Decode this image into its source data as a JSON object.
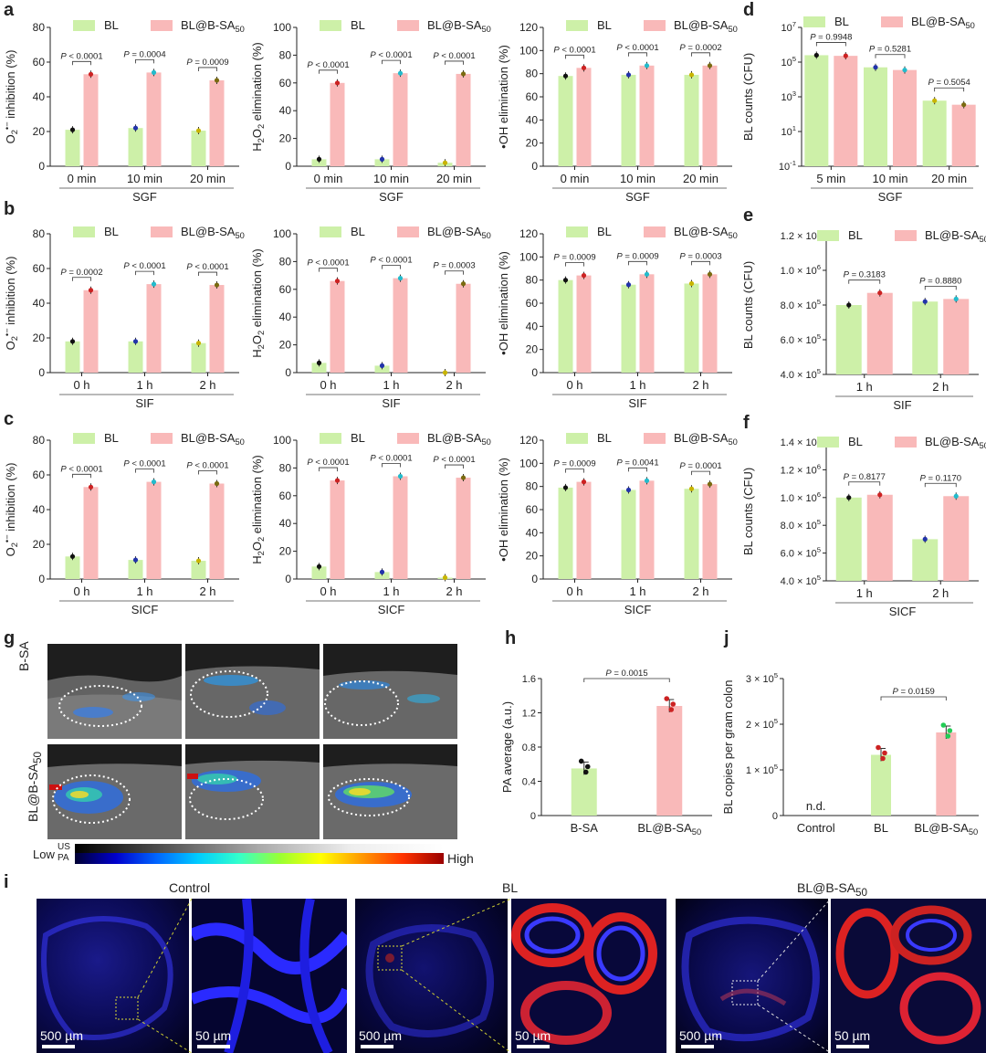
{
  "colors": {
    "bl": "#cdf0a8",
    "bla": "#f9b9b9"
  },
  "panels": {
    "a": "a",
    "b": "b",
    "c": "c",
    "d": "d",
    "e": "e",
    "f": "f",
    "g": "g",
    "h": "h",
    "i": "i",
    "j": "j"
  },
  "legend": {
    "bl": "BL",
    "bla_main": "BL@B-SA",
    "bla_sub": "50"
  },
  "chart_data": [
    {
      "id": "a1",
      "type": "bar",
      "categories": [
        "0 min",
        "10 min",
        "20 min"
      ],
      "xlabel": "SGF",
      "ylabel": "O2•− inhibition (%)",
      "ylim": [
        0,
        80
      ],
      "yticks": [
        "0",
        "20",
        "40",
        "60",
        "80"
      ],
      "series": [
        {
          "name": "BL",
          "values": [
            21,
            22,
            20.5
          ]
        },
        {
          "name": "BL@B-SA50",
          "values": [
            53,
            54,
            49.5
          ]
        }
      ],
      "pvalues": [
        "P < 0.0001",
        "P = 0.0004",
        "P = 0.0009"
      ]
    },
    {
      "id": "a2",
      "type": "bar",
      "categories": [
        "0 min",
        "10 min",
        "20 min"
      ],
      "xlabel": "SGF",
      "ylabel": "H2O2 elimination (%)",
      "ylim": [
        0,
        100
      ],
      "yticks": [
        "0",
        "20",
        "40",
        "60",
        "80",
        "100"
      ],
      "series": [
        {
          "name": "BL",
          "values": [
            5,
            5,
            2.5
          ]
        },
        {
          "name": "BL@B-SA50",
          "values": [
            60,
            67,
            66.5
          ]
        }
      ],
      "pvalues": [
        "P < 0.0001",
        "P < 0.0001",
        "P < 0.0001"
      ]
    },
    {
      "id": "a3",
      "type": "bar",
      "categories": [
        "0 min",
        "10 min",
        "20 min"
      ],
      "xlabel": "SGF",
      "ylabel": "•OH elimination (%)",
      "ylim": [
        0,
        120
      ],
      "yticks": [
        "0",
        "20",
        "40",
        "60",
        "80",
        "100",
        "120"
      ],
      "series": [
        {
          "name": "BL",
          "values": [
            78,
            79,
            79
          ]
        },
        {
          "name": "BL@B-SA50",
          "values": [
            85,
            87,
            87
          ]
        }
      ],
      "pvalues": [
        "P < 0.0001",
        "P < 0.0001",
        "P = 0.0002"
      ]
    },
    {
      "id": "d",
      "type": "bar",
      "scale": "log",
      "categories": [
        "5 min",
        "10 min",
        "20 min"
      ],
      "xlabel": "SGF",
      "ylabel": "BL counts (CFU)",
      "ylim_exp": [
        -1,
        7
      ],
      "yticks": [
        "10^-1",
        "10^1",
        "10^3",
        "10^5",
        "10^7"
      ],
      "series": [
        {
          "name": "BL",
          "values": [
            250000.0,
            50000.0,
            600.0
          ]
        },
        {
          "name": "BL@B-SA50",
          "values": [
            230000.0,
            35000.0,
            350.0
          ]
        }
      ],
      "pvalues": [
        "P = 0.9948",
        "P = 0.5281",
        "P = 0.5054"
      ]
    },
    {
      "id": "b1",
      "type": "bar",
      "categories": [
        "0 h",
        "1 h",
        "2 h"
      ],
      "xlabel": "SIF",
      "ylabel": "O2•− inhibition (%)",
      "ylim": [
        0,
        80
      ],
      "yticks": [
        "0",
        "20",
        "40",
        "60",
        "80"
      ],
      "series": [
        {
          "name": "BL",
          "values": [
            18,
            18,
            17
          ]
        },
        {
          "name": "BL@B-SA50",
          "values": [
            47.5,
            51,
            50.5
          ]
        }
      ],
      "pvalues": [
        "P = 0.0002",
        "P < 0.0001",
        "P < 0.0001"
      ]
    },
    {
      "id": "b2",
      "type": "bar",
      "categories": [
        "0 h",
        "1 h",
        "2 h"
      ],
      "xlabel": "SIF",
      "ylabel": "H2O2 elimination (%)",
      "ylim": [
        0,
        100
      ],
      "yticks": [
        "0",
        "20",
        "40",
        "60",
        "80",
        "100"
      ],
      "series": [
        {
          "name": "BL",
          "values": [
            7,
            5,
            0
          ]
        },
        {
          "name": "BL@B-SA50",
          "values": [
            66,
            68,
            64
          ]
        }
      ],
      "pvalues": [
        "P < 0.0001",
        "P < 0.0001",
        "P = 0.0003"
      ]
    },
    {
      "id": "b3",
      "type": "bar",
      "categories": [
        "0 h",
        "1 h",
        "2 h"
      ],
      "xlabel": "SIF",
      "ylabel": "•OH elimination (%)",
      "ylim": [
        0,
        120
      ],
      "yticks": [
        "0",
        "20",
        "40",
        "60",
        "80",
        "100",
        "120"
      ],
      "series": [
        {
          "name": "BL",
          "values": [
            80,
            76,
            77
          ]
        },
        {
          "name": "BL@B-SA50",
          "values": [
            84,
            85,
            85
          ]
        }
      ],
      "pvalues": [
        "P = 0.0009",
        "P = 0.0009",
        "P = 0.0003"
      ]
    },
    {
      "id": "e",
      "type": "bar",
      "categories": [
        "1 h",
        "2 h"
      ],
      "xlabel": "SIF",
      "ylabel": "BL counts (CFU)",
      "ylim": [
        400000.0,
        1200000.0
      ],
      "yticks": [
        "4.0 × 10^5",
        "6.0 × 10^5",
        "8.0 × 10^5",
        "1.0 × 10^6",
        "1.2 × 10^6"
      ],
      "series": [
        {
          "name": "BL",
          "values": [
            800000.0,
            820000.0
          ]
        },
        {
          "name": "BL@B-SA50",
          "values": [
            870000.0,
            835000.0
          ]
        }
      ],
      "pvalues": [
        "P = 0.3183",
        "P = 0.8880"
      ]
    },
    {
      "id": "c1",
      "type": "bar",
      "categories": [
        "0 h",
        "1 h",
        "2 h"
      ],
      "xlabel": "SICF",
      "ylabel": "O2•− inhibition (%)",
      "ylim": [
        0,
        80
      ],
      "yticks": [
        "0",
        "20",
        "40",
        "60",
        "80"
      ],
      "series": [
        {
          "name": "BL",
          "values": [
            13,
            11,
            10.5
          ]
        },
        {
          "name": "BL@B-SA50",
          "values": [
            53,
            56,
            55
          ]
        }
      ],
      "pvalues": [
        "P < 0.0001",
        "P < 0.0001",
        "P < 0.0001"
      ]
    },
    {
      "id": "c2",
      "type": "bar",
      "categories": [
        "0 h",
        "1 h",
        "2 h"
      ],
      "xlabel": "SICF",
      "ylabel": "H2O2 elimination (%)",
      "ylim": [
        0,
        100
      ],
      "yticks": [
        "0",
        "20",
        "40",
        "60",
        "80",
        "100"
      ],
      "series": [
        {
          "name": "BL",
          "values": [
            9,
            5,
            1
          ]
        },
        {
          "name": "BL@B-SA50",
          "values": [
            71,
            74,
            73
          ]
        }
      ],
      "pvalues": [
        "P < 0.0001",
        "P < 0.0001",
        "P < 0.0001"
      ]
    },
    {
      "id": "c3",
      "type": "bar",
      "categories": [
        "0 h",
        "1 h",
        "2 h"
      ],
      "xlabel": "SICF",
      "ylabel": "•OH elimination (%)",
      "ylim": [
        0,
        120
      ],
      "yticks": [
        "0",
        "20",
        "40",
        "60",
        "80",
        "100",
        "120"
      ],
      "series": [
        {
          "name": "BL",
          "values": [
            79,
            77,
            78
          ]
        },
        {
          "name": "BL@B-SA50",
          "values": [
            84,
            85,
            82
          ]
        }
      ],
      "pvalues": [
        "P = 0.0009",
        "P = 0.0041",
        "P = 0.0001"
      ]
    },
    {
      "id": "f",
      "type": "bar",
      "categories": [
        "1 h",
        "2 h"
      ],
      "xlabel": "SICF",
      "ylabel": "BL counts (CFU)",
      "ylim": [
        400000.0,
        1400000.0
      ],
      "yticks": [
        "4.0 × 10^5",
        "6.0 × 10^5",
        "8.0 × 10^5",
        "1.0 × 10^6",
        "1.2 × 10^6",
        "1.4 × 10^6"
      ],
      "series": [
        {
          "name": "BL",
          "values": [
            1000000.0,
            700000.0
          ]
        },
        {
          "name": "BL@B-SA50",
          "values": [
            1020000.0,
            1010000.0
          ]
        }
      ],
      "pvalues": [
        "P = 0.8177",
        "P = 0.1170"
      ]
    },
    {
      "id": "h",
      "type": "bar",
      "categories": [
        "B-SA",
        "BL@B-SA50"
      ],
      "ylabel": "PA average (a.u.)",
      "ylim": [
        0,
        1.6
      ],
      "yticks": [
        "0",
        "0.4",
        "0.8",
        "1.2",
        "1.6"
      ],
      "values": [
        0.55,
        1.28
      ],
      "pvalue": "P = 0.0015"
    },
    {
      "id": "j",
      "type": "bar",
      "categories": [
        "Control",
        "BL",
        "BL@B-SA50"
      ],
      "ylabel": "BL copies per gram colon",
      "ylim": [
        0,
        300000.0
      ],
      "yticks": [
        "0",
        "1 × 10^5",
        "2 × 10^5",
        "3 × 10^5"
      ],
      "values": [
        0,
        133000.0,
        182000.0
      ],
      "pvalue": "P = 0.0159",
      "nd": "n.d."
    }
  ],
  "g": {
    "row1": "B-SA",
    "row2": "BL@B-SA50",
    "low": "Low",
    "high": "High",
    "us": "US",
    "pa": "PA"
  },
  "i": {
    "titles": [
      "Control",
      "BL",
      "BL@B-SA50"
    ],
    "scale_big": "500 µm",
    "scale_small": "50 µm"
  }
}
